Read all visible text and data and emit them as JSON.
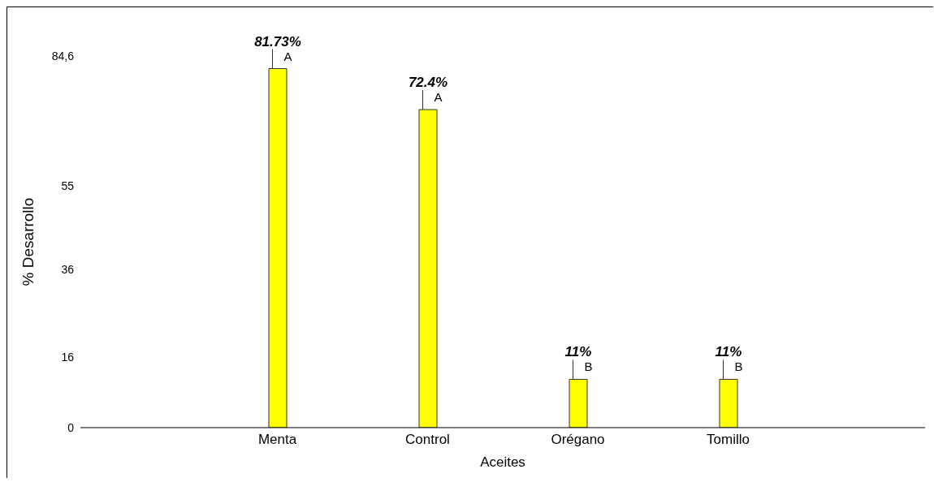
{
  "chart_data": {
    "type": "bar",
    "xlabel": "Aceites",
    "ylabel": "% Desarrollo",
    "categories": [
      "Menta",
      "Control",
      "Orégano",
      "Tomillo"
    ],
    "values": [
      81.73,
      72.4,
      11,
      11
    ],
    "value_labels": [
      "81.73%",
      "72.4%",
      "11%",
      "11%"
    ],
    "color": "#ffff00",
    "ylim": [
      0,
      84.6
    ],
    "yticks": [
      0,
      16,
      36,
      55,
      {
        "value": 84.6,
        "label": "84,6"
      }
    ],
    "annotations": [
      {
        "text": "A",
        "x": "Menta",
        "y": 81.73
      },
      {
        "text": "A",
        "x": "Control",
        "y": 72.4
      },
      {
        "text": "B",
        "x": "Orégano",
        "y": 11
      },
      {
        "text": "B",
        "x": "Tomillo",
        "y": 11
      }
    ],
    "grid": false,
    "legend": false
  }
}
